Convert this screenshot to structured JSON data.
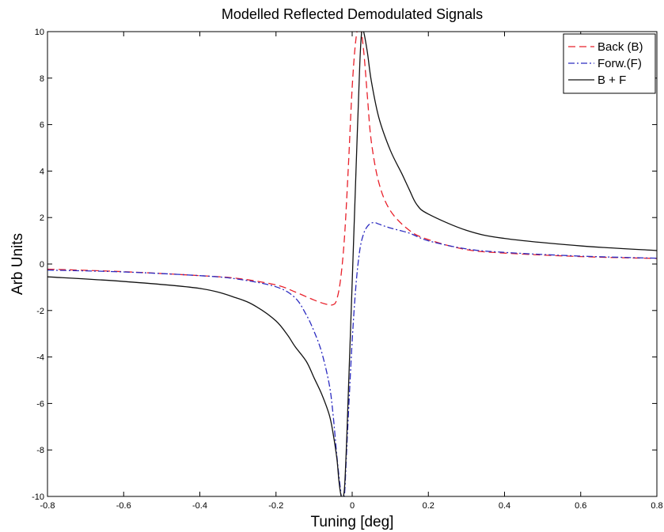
{
  "chart_data": {
    "type": "line",
    "title": "Modelled Reflected Demodulated Signals",
    "xlabel": "Tuning [deg]",
    "ylabel": "Arb Units",
    "xlim": [
      -0.8,
      0.8
    ],
    "ylim": [
      -10,
      10
    ],
    "xticks": [
      -0.8,
      -0.6,
      -0.4,
      -0.2,
      0,
      0.2,
      0.4,
      0.6,
      0.8
    ],
    "yticks": [
      -10,
      -8,
      -6,
      -4,
      -2,
      0,
      2,
      4,
      6,
      8,
      10
    ],
    "xtick_labels": [
      "-0.8",
      "-0.6",
      "-0.4",
      "-0.2",
      "0",
      "0.2",
      "0.4",
      "0.6",
      "0.8"
    ],
    "ytick_labels": [
      "-10",
      "-8",
      "-6",
      "-4",
      "-2",
      "0",
      "2",
      "4",
      "6",
      "8",
      "10"
    ],
    "grid": false,
    "legend_position": "top-right",
    "series": [
      {
        "name": "Back (B)",
        "color": "#e8202a",
        "dash": "dashed",
        "x": [
          -0.8,
          -0.6,
          -0.4,
          -0.3,
          -0.2,
          -0.15,
          -0.1,
          -0.07,
          -0.05,
          -0.04,
          -0.03,
          -0.02,
          -0.01,
          0.0,
          0.01,
          0.02,
          0.03,
          0.04,
          0.05,
          0.07,
          0.1,
          0.15,
          0.2,
          0.3,
          0.4,
          0.6,
          0.8
        ],
        "y": [
          -0.22,
          -0.33,
          -0.5,
          -0.62,
          -0.9,
          -1.2,
          -1.55,
          -1.72,
          -1.75,
          -1.5,
          -0.6,
          1.2,
          4.2,
          7.6,
          9.7,
          10.3,
          9.2,
          7.2,
          5.3,
          3.5,
          2.3,
          1.45,
          1.05,
          0.62,
          0.47,
          0.32,
          0.24
        ]
      },
      {
        "name": "Forw.(F)",
        "color": "#2b2bc0",
        "dash": "dashdot",
        "x": [
          -0.8,
          -0.6,
          -0.4,
          -0.3,
          -0.2,
          -0.15,
          -0.12,
          -0.1,
          -0.08,
          -0.06,
          -0.05,
          -0.04,
          -0.03,
          -0.025,
          -0.02,
          -0.015,
          -0.01,
          0.0,
          0.01,
          0.02,
          0.03,
          0.04,
          0.05,
          0.06,
          0.07,
          0.1,
          0.15,
          0.2,
          0.3,
          0.4,
          0.6,
          0.8
        ],
        "y": [
          -0.26,
          -0.34,
          -0.5,
          -0.65,
          -0.98,
          -1.45,
          -2.2,
          -2.9,
          -3.8,
          -5.2,
          -6.5,
          -8.3,
          -9.8,
          -10.4,
          -9.9,
          -8.2,
          -6.5,
          -3.3,
          -0.9,
          0.6,
          1.3,
          1.62,
          1.76,
          1.78,
          1.72,
          1.55,
          1.33,
          1.0,
          0.65,
          0.5,
          0.34,
          0.25
        ]
      },
      {
        "name": "B + F",
        "color": "#111111",
        "dash": "solid",
        "x": [
          -0.8,
          -0.6,
          -0.4,
          -0.3,
          -0.25,
          -0.2,
          -0.17,
          -0.15,
          -0.12,
          -0.1,
          -0.08,
          -0.06,
          -0.05,
          -0.04,
          -0.035,
          -0.03,
          -0.025,
          -0.02,
          -0.015,
          -0.01,
          0.0,
          0.01,
          0.02,
          0.025,
          0.03,
          0.04,
          0.05,
          0.07,
          0.1,
          0.13,
          0.15,
          0.17,
          0.2,
          0.3,
          0.4,
          0.6,
          0.8
        ],
        "y": [
          -0.55,
          -0.75,
          -1.05,
          -1.48,
          -1.85,
          -2.45,
          -3.05,
          -3.55,
          -4.2,
          -4.9,
          -5.6,
          -6.5,
          -7.3,
          -8.4,
          -9.3,
          -9.9,
          -10.1,
          -9.6,
          -7.8,
          -5.5,
          -0.8,
          4.0,
          8.6,
          10.0,
          10.0,
          9.1,
          7.9,
          6.3,
          4.9,
          3.9,
          3.2,
          2.55,
          2.15,
          1.45,
          1.1,
          0.78,
          0.58
        ]
      }
    ]
  }
}
